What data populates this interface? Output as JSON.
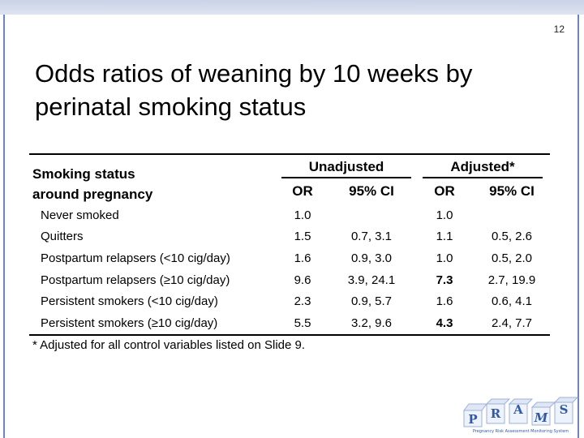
{
  "slide_number": "12",
  "title": "Odds ratios of weaning by 10 weeks by perinatal smoking status",
  "table": {
    "status_header_line1": "Smoking status",
    "status_header_line2": "around pregnancy",
    "group_unadjusted": "Unadjusted",
    "group_adjusted": "Adjusted*",
    "col_or": "OR",
    "col_ci": "95% CI",
    "rows": [
      {
        "label": "Never smoked",
        "u_or": "1.0",
        "u_ci": "",
        "a_or": "1.0",
        "a_ci": "",
        "a_or_bold": false
      },
      {
        "label": "Quitters",
        "u_or": "1.5",
        "u_ci": "0.7, 3.1",
        "a_or": "1.1",
        "a_ci": "0.5, 2.6",
        "a_or_bold": false
      },
      {
        "label": "Postpartum relapsers (<10 cig/day)",
        "u_or": "1.6",
        "u_ci": "0.9, 3.0",
        "a_or": "1.0",
        "a_ci": "0.5, 2.0",
        "a_or_bold": false
      },
      {
        "label": "Postpartum relapsers (≥10 cig/day)",
        "u_or": "9.6",
        "u_ci": "3.9, 24.1",
        "a_or": "7.3",
        "a_ci": "2.7, 19.9",
        "a_or_bold": true
      },
      {
        "label": "Persistent smokers (<10 cig/day)",
        "u_or": "2.3",
        "u_ci": "0.9, 5.7",
        "a_or": "1.6",
        "a_ci": "0.6, 4.1",
        "a_or_bold": false
      },
      {
        "label": "Persistent smokers (≥10 cig/day)",
        "u_or": "5.5",
        "u_ci": "3.2, 9.6",
        "a_or": "4.3",
        "a_ci": "2.4, 7.7",
        "a_or_bold": true
      }
    ]
  },
  "footnote": "* Adjusted for all control variables listed on Slide 9.",
  "logo": {
    "letters": [
      "P",
      "R",
      "A",
      "M",
      "S"
    ],
    "tagline": "Pregnancy Risk Assessment Monitoring System"
  }
}
